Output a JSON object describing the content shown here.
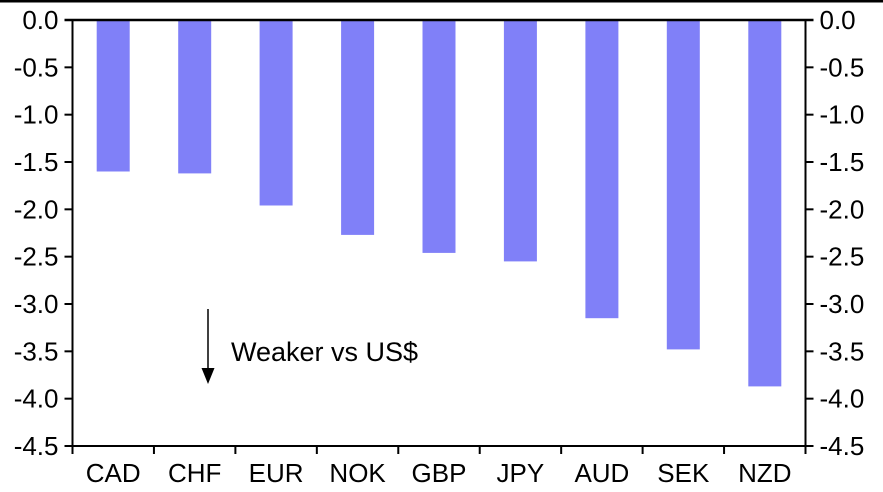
{
  "chart_data": {
    "type": "bar",
    "title": "",
    "xlabel": "",
    "ylabel": "",
    "categories": [
      "CAD",
      "CHF",
      "EUR",
      "NOK",
      "GBP",
      "JPY",
      "AUD",
      "SEK",
      "NZD"
    ],
    "values": [
      -1.6,
      -1.62,
      -1.96,
      -2.27,
      -2.46,
      -2.55,
      -3.15,
      -3.48,
      -3.87
    ],
    "ylim": [
      -4.5,
      0.0
    ],
    "ytick_step": 0.5,
    "ytick_labels": [
      "0.0",
      "-0.5",
      "-1.0",
      "-1.5",
      "-2.0",
      "-2.5",
      "-3.0",
      "-3.5",
      "-4.0",
      "-4.5"
    ],
    "dual_y_axis": true,
    "grid": false,
    "legend_position": "none",
    "bar_color": "#8080F8",
    "axis_color": "#000000",
    "annotation": {
      "text": "Weaker vs US$",
      "arrow_direction": "down"
    }
  }
}
